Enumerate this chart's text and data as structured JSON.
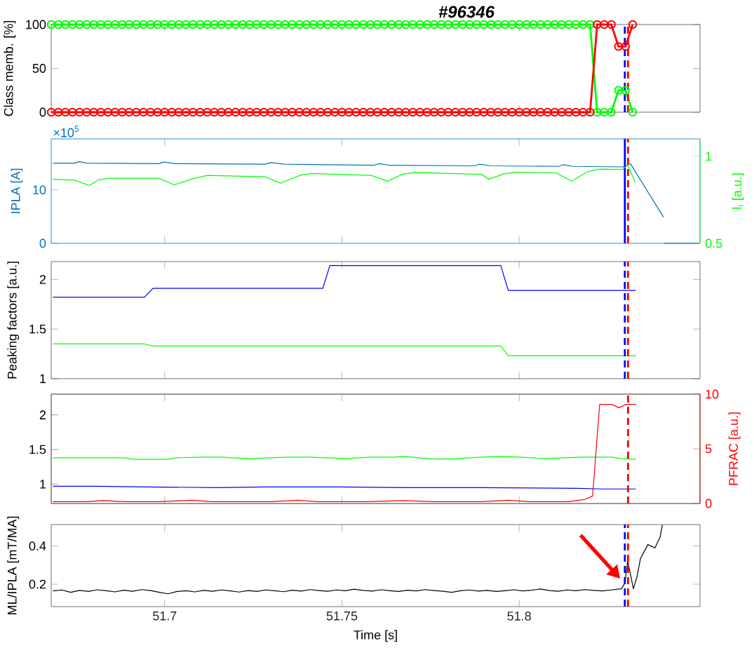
{
  "chart_data": [
    {
      "type": "line",
      "title": "#96346",
      "ylabel": "Class memb. [%]",
      "marker": "circle",
      "tick_labels": "y",
      "xlim": [
        51.668,
        51.851
      ],
      "xticks": [
        51.7,
        51.75,
        51.8
      ],
      "ylim": [
        0,
        100
      ],
      "yticks": [
        0,
        50,
        100
      ],
      "x": [
        51.668,
        51.67,
        51.672,
        51.674,
        51.676,
        51.678,
        51.68,
        51.682,
        51.684,
        51.686,
        51.688,
        51.69,
        51.692,
        51.694,
        51.696,
        51.698,
        51.7,
        51.702,
        51.704,
        51.706,
        51.708,
        51.71,
        51.712,
        51.714,
        51.716,
        51.718,
        51.72,
        51.722,
        51.724,
        51.726,
        51.728,
        51.73,
        51.732,
        51.734,
        51.736,
        51.738,
        51.74,
        51.742,
        51.744,
        51.746,
        51.748,
        51.75,
        51.752,
        51.754,
        51.756,
        51.758,
        51.76,
        51.762,
        51.764,
        51.766,
        51.768,
        51.77,
        51.772,
        51.774,
        51.776,
        51.778,
        51.78,
        51.782,
        51.784,
        51.786,
        51.788,
        51.79,
        51.792,
        51.794,
        51.796,
        51.798,
        51.8,
        51.802,
        51.804,
        51.806,
        51.808,
        51.81,
        51.812,
        51.814,
        51.816,
        51.818,
        51.82,
        51.822,
        51.824,
        51.826,
        51.828,
        51.83,
        51.832
      ],
      "series": [
        {
          "color": "#00ff00",
          "values": [
            100,
            100,
            100,
            100,
            100,
            100,
            100,
            100,
            100,
            100,
            100,
            100,
            100,
            100,
            100,
            100,
            100,
            100,
            100,
            100,
            100,
            100,
            100,
            100,
            100,
            100,
            100,
            100,
            100,
            100,
            100,
            100,
            100,
            100,
            100,
            100,
            100,
            100,
            100,
            100,
            100,
            100,
            100,
            100,
            100,
            100,
            100,
            100,
            100,
            100,
            100,
            100,
            100,
            100,
            100,
            100,
            100,
            100,
            100,
            100,
            100,
            100,
            100,
            100,
            100,
            100,
            100,
            100,
            100,
            100,
            100,
            100,
            100,
            100,
            100,
            100,
            100,
            0,
            0,
            0,
            25,
            25,
            0
          ]
        },
        {
          "color": "#ff0000",
          "values": [
            0,
            0,
            0,
            0,
            0,
            0,
            0,
            0,
            0,
            0,
            0,
            0,
            0,
            0,
            0,
            0,
            0,
            0,
            0,
            0,
            0,
            0,
            0,
            0,
            0,
            0,
            0,
            0,
            0,
            0,
            0,
            0,
            0,
            0,
            0,
            0,
            0,
            0,
            0,
            0,
            0,
            0,
            0,
            0,
            0,
            0,
            0,
            0,
            0,
            0,
            0,
            0,
            0,
            0,
            0,
            0,
            0,
            0,
            0,
            0,
            0,
            0,
            0,
            0,
            0,
            0,
            0,
            0,
            0,
            0,
            0,
            0,
            0,
            0,
            0,
            0,
            0,
            100,
            100,
            100,
            75,
            75,
            100
          ]
        }
      ],
      "ref_lines": [
        {
          "axis": "x",
          "value": 51.8298,
          "color": "#0000ff",
          "line_style": "dashed"
        },
        {
          "axis": "x",
          "value": 51.8307,
          "color": "#ff0000",
          "line_style": "dashed"
        }
      ]
    },
    {
      "type": "line",
      "ylabel": "IPLA [A]",
      "y2label": "l$_{i}$ [a.u.]",
      "annotations": [
        "×10$^{5}$"
      ],
      "tick_labels": "y",
      "xlim": [
        51.668,
        51.851
      ],
      "xticks": [
        51.7,
        51.75,
        51.8
      ],
      "ylim": [
        0,
        19.55
      ],
      "yticks": [
        0,
        10
      ],
      "y2lim": [
        0.5,
        1.1
      ],
      "y2ticks": [
        0.5,
        1
      ],
      "series": [
        {
          "color": "#0072bd",
          "x": [
            51.6685,
            51.6746,
            51.676,
            51.678,
            51.6984,
            51.6997,
            51.7031,
            51.7283,
            51.73,
            51.7337,
            51.7588,
            51.7606,
            51.7636,
            51.7874,
            51.7887,
            51.7921,
            51.8111,
            51.8125,
            51.8152,
            51.8295,
            51.8314,
            51.8324,
            51.8407,
            51.8408,
            51.8409,
            51.8508
          ],
          "values": [
            15.0,
            15.0,
            15.3,
            15.0,
            14.9,
            15.2,
            14.9,
            14.8,
            15.1,
            14.8,
            14.6,
            14.9,
            14.6,
            14.5,
            14.8,
            14.5,
            14.4,
            14.7,
            14.4,
            14.3,
            14.9,
            13.8,
            4.9,
            null,
            0,
            0
          ]
        },
        {
          "color": "#00ff00",
          "axis": "y2",
          "x": [
            51.6685,
            51.6746,
            51.6787,
            51.6814,
            51.6848,
            51.6984,
            51.7027,
            51.7079,
            51.712,
            51.7283,
            51.7327,
            51.7385,
            51.7418,
            51.7582,
            51.7629,
            51.767,
            51.7704,
            51.7894,
            51.7914,
            51.7955,
            51.7989,
            51.8105,
            51.8148,
            51.8193,
            51.8227,
            51.8291,
            51.8306,
            51.8327
          ],
          "values": [
            0.868,
            0.863,
            0.832,
            0.865,
            0.874,
            0.874,
            0.835,
            0.871,
            0.89,
            0.882,
            0.846,
            0.893,
            0.901,
            0.89,
            0.857,
            0.896,
            0.907,
            0.896,
            0.868,
            0.898,
            0.909,
            0.904,
            0.857,
            0.912,
            0.926,
            0.924,
            0.951,
            0.851
          ]
        }
      ],
      "ref_lines": [
        {
          "axis": "x",
          "value": 51.8298,
          "color": "#0000ff",
          "line_style": "solid"
        },
        {
          "axis": "x",
          "value": 51.8307,
          "color": "#ff0000",
          "line_style": "dashed"
        }
      ]
    },
    {
      "type": "line",
      "ylabel": "Peaking factors [a.u.]",
      "tick_labels": "y",
      "xlim": [
        51.668,
        51.851
      ],
      "xticks": [
        51.7,
        51.75,
        51.8
      ],
      "ylim": [
        1,
        2.18
      ],
      "yticks": [
        1,
        1.5,
        2
      ],
      "x": [
        51.6685,
        51.6943,
        51.6967,
        51.7446,
        51.7466,
        51.7948,
        51.7969,
        51.8329
      ],
      "series": [
        {
          "color": "#0000ff",
          "values": [
            1.82,
            1.82,
            1.91,
            1.91,
            2.14,
            2.14,
            1.89,
            1.89
          ]
        },
        {
          "color": "#00ff00",
          "values": [
            1.35,
            1.35,
            1.33,
            1.33,
            1.33,
            1.33,
            1.23,
            1.23
          ]
        }
      ],
      "ref_lines": [
        {
          "axis": "x",
          "value": 51.8298,
          "color": "#0000ff",
          "line_style": "dashed"
        },
        {
          "axis": "x",
          "value": 51.8307,
          "color": "#ff0000",
          "line_style": "dashed"
        }
      ]
    },
    {
      "type": "line",
      "y2label": "PFRAC [a.u.]",
      "tick_labels": "y",
      "xlim": [
        51.668,
        51.851
      ],
      "xticks": [
        51.7,
        51.75,
        51.8
      ],
      "ylim": [
        0.72,
        2.3
      ],
      "yticks": [
        1,
        1.5,
        2
      ],
      "y2lim": [
        0,
        10
      ],
      "y2ticks": [
        0,
        5,
        10
      ],
      "series": [
        {
          "color": "#00ff00",
          "x": [
            51.6685,
            51.6889,
            51.6909,
            51.7011,
            51.7031,
            51.7106,
            51.716,
            51.7188,
            51.7242,
            51.7351,
            51.7405,
            51.7459,
            51.7514,
            51.7582,
            51.7649,
            51.7677,
            51.7717,
            51.7772,
            51.7826,
            51.7894,
            51.7948,
            51.8003,
            51.8071,
            51.8125,
            51.8179,
            51.8261,
            51.8288,
            51.8329
          ],
          "values": [
            1.38,
            1.38,
            1.36,
            1.36,
            1.38,
            1.39,
            1.39,
            1.38,
            1.37,
            1.39,
            1.39,
            1.38,
            1.37,
            1.39,
            1.39,
            1.4,
            1.38,
            1.36,
            1.37,
            1.39,
            1.4,
            1.39,
            1.37,
            1.38,
            1.39,
            1.39,
            1.37,
            1.36
          ]
        },
        {
          "color": "#0000ff",
          "x": [
            51.6685,
            51.6807,
            51.6943,
            51.7147,
            51.7283,
            51.7486,
            51.769,
            51.7894,
            51.8166,
            51.8234,
            51.8329
          ],
          "values": [
            0.97,
            0.97,
            0.96,
            0.95,
            0.96,
            0.96,
            0.95,
            0.95,
            0.94,
            0.93,
            0.93
          ]
        },
        {
          "color": "#ff0000",
          "axis": "y2",
          "x": [
            51.6685,
            51.678,
            51.6827,
            51.6889,
            51.6984,
            51.7079,
            51.7133,
            51.7296,
            51.7378,
            51.7432,
            51.7568,
            51.7677,
            51.7758,
            51.7894,
            51.7969,
            51.803,
            51.8139,
            51.8186,
            51.8207,
            51.8227,
            51.8261,
            51.8281,
            51.8302,
            51.8329
          ],
          "values": [
            0.17,
            0.17,
            0.26,
            0.17,
            0.17,
            0.3,
            0.17,
            0.17,
            0.3,
            0.17,
            0.17,
            0.26,
            0.17,
            0.17,
            0.3,
            0.17,
            0.17,
            0.38,
            0.68,
            9.06,
            9.06,
            8.76,
            9.06,
            9.06
          ]
        }
      ],
      "ref_lines": [
        {
          "axis": "x",
          "value": 51.8307,
          "color": "#ff0000",
          "line_style": "dashed"
        }
      ]
    },
    {
      "type": "line",
      "xlabel": "Time [s]",
      "ylabel": "ML/IPLA [mT/MA]",
      "xlim": [
        51.668,
        51.851
      ],
      "xticks": [
        51.7,
        51.75,
        51.8
      ],
      "ylim": [
        0.083,
        0.512
      ],
      "yticks": [
        0.2,
        0.4
      ],
      "series": [
        {
          "color": "#000000",
          "x": [
            51.6685,
            51.671,
            51.6735,
            51.676,
            51.6785,
            51.681,
            51.6835,
            51.686,
            51.6885,
            51.691,
            51.6935,
            51.696,
            51.6985,
            51.701,
            51.7035,
            51.706,
            51.7085,
            51.711,
            51.7135,
            51.716,
            51.7185,
            51.721,
            51.7235,
            51.726,
            51.7285,
            51.731,
            51.7335,
            51.736,
            51.7385,
            51.741,
            51.7435,
            51.746,
            51.7485,
            51.751,
            51.7535,
            51.756,
            51.7585,
            51.761,
            51.7635,
            51.766,
            51.7685,
            51.771,
            51.7735,
            51.776,
            51.7785,
            51.781,
            51.7835,
            51.786,
            51.7885,
            51.791,
            51.7935,
            51.796,
            51.7985,
            51.801,
            51.8035,
            51.806,
            51.8085,
            51.811,
            51.8135,
            51.816,
            51.8185,
            51.821,
            51.8235,
            51.826,
            51.8288,
            51.8298,
            51.8306,
            51.8313,
            51.8322,
            51.8332,
            51.8342,
            51.8363,
            51.8383,
            51.8397,
            51.8404
          ],
          "values": [
            0.165,
            0.17,
            0.158,
            0.168,
            0.162,
            0.171,
            0.166,
            0.16,
            0.169,
            0.163,
            0.172,
            0.167,
            0.158,
            0.15,
            0.162,
            0.166,
            0.16,
            0.168,
            0.163,
            0.17,
            0.165,
            0.159,
            0.167,
            0.162,
            0.17,
            0.166,
            0.161,
            0.169,
            0.164,
            0.172,
            0.167,
            0.163,
            0.17,
            0.166,
            0.174,
            0.168,
            0.164,
            0.171,
            0.166,
            0.162,
            0.169,
            0.165,
            0.172,
            0.167,
            0.163,
            0.158,
            0.166,
            0.17,
            0.164,
            0.168,
            0.162,
            0.166,
            0.171,
            0.165,
            0.169,
            0.175,
            0.167,
            0.163,
            0.17,
            0.166,
            0.172,
            0.168,
            0.165,
            0.17,
            0.176,
            0.205,
            0.322,
            0.26,
            0.176,
            0.237,
            0.334,
            0.407,
            0.39,
            0.444,
            0.51
          ]
        }
      ],
      "ref_lines": [
        {
          "axis": "x",
          "value": 51.8298,
          "color": "#0000ff",
          "line_style": "dashed"
        },
        {
          "axis": "x",
          "value": 51.8307,
          "color": "#ff0000",
          "line_style": "dashed"
        }
      ]
    }
  ]
}
